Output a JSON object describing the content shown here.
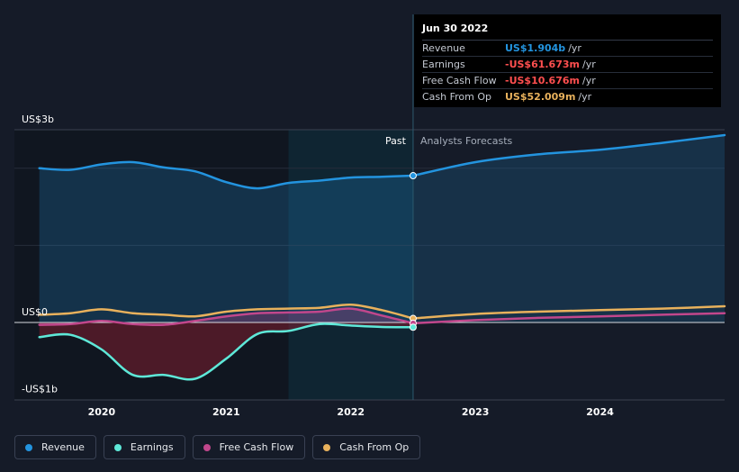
{
  "chart_data": {
    "type": "line",
    "unit": "USD",
    "y_axis": {
      "ylim": [
        -1.0,
        2.5
      ],
      "labels": [
        {
          "value": 2.5,
          "text": "US$3b"
        },
        {
          "value": 0,
          "text": "US$0"
        },
        {
          "value": -1.0,
          "text": "-US$1b"
        }
      ]
    },
    "x_axis": {
      "xlim": [
        2019.3,
        2025.0
      ],
      "ticks": [
        {
          "value": 2020.0,
          "text": "2020"
        },
        {
          "value": 2021.0,
          "text": "2021"
        },
        {
          "value": 2022.0,
          "text": "2022"
        },
        {
          "value": 2023.0,
          "text": "2023"
        },
        {
          "value": 2024.0,
          "text": "2024"
        }
      ]
    },
    "regions": {
      "past_label": "Past",
      "forecast_label": "Analysts Forecasts",
      "highlight_start": 2021.5,
      "divider": 2022.5
    },
    "series": [
      {
        "name": "Revenue",
        "color": "#2394df",
        "fill": true,
        "past": [
          [
            2019.5,
            2.0
          ],
          [
            2019.75,
            1.98
          ],
          [
            2020.0,
            2.05
          ],
          [
            2020.25,
            2.08
          ],
          [
            2020.5,
            2.01
          ],
          [
            2020.75,
            1.96
          ],
          [
            2021.0,
            1.82
          ],
          [
            2021.25,
            1.74
          ],
          [
            2021.5,
            1.81
          ],
          [
            2021.75,
            1.84
          ],
          [
            2022.0,
            1.88
          ],
          [
            2022.25,
            1.89
          ],
          [
            2022.5,
            1.904
          ]
        ],
        "forecast": [
          [
            2022.5,
            1.904
          ],
          [
            2023.0,
            2.08
          ],
          [
            2023.5,
            2.18
          ],
          [
            2024.0,
            2.24
          ],
          [
            2024.5,
            2.33
          ],
          [
            2025.0,
            2.43
          ]
        ]
      },
      {
        "name": "Earnings",
        "color": "#5ee8d8",
        "fill": true,
        "past": [
          [
            2019.5,
            -0.19
          ],
          [
            2019.75,
            -0.16
          ],
          [
            2020.0,
            -0.35
          ],
          [
            2020.25,
            -0.68
          ],
          [
            2020.5,
            -0.68
          ],
          [
            2020.75,
            -0.73
          ],
          [
            2021.0,
            -0.47
          ],
          [
            2021.25,
            -0.15
          ],
          [
            2021.5,
            -0.11
          ],
          [
            2021.75,
            -0.02
          ],
          [
            2022.0,
            -0.04
          ],
          [
            2022.25,
            -0.058
          ],
          [
            2022.5,
            -0.0617
          ]
        ],
        "forecast": []
      },
      {
        "name": "Free Cash Flow",
        "color": "#c1478c",
        "fill": true,
        "past": [
          [
            2019.5,
            -0.03
          ],
          [
            2019.75,
            -0.02
          ],
          [
            2020.0,
            0.02
          ],
          [
            2020.25,
            -0.02
          ],
          [
            2020.5,
            -0.03
          ],
          [
            2020.75,
            0.02
          ],
          [
            2021.0,
            0.08
          ],
          [
            2021.25,
            0.12
          ],
          [
            2021.5,
            0.13
          ],
          [
            2021.75,
            0.14
          ],
          [
            2022.0,
            0.18
          ],
          [
            2022.25,
            0.09
          ],
          [
            2022.5,
            -0.0107
          ]
        ],
        "forecast": [
          [
            2022.5,
            -0.0107
          ],
          [
            2023.0,
            0.03
          ],
          [
            2023.5,
            0.06
          ],
          [
            2024.0,
            0.08
          ],
          [
            2024.5,
            0.1
          ],
          [
            2025.0,
            0.12
          ]
        ]
      },
      {
        "name": "Cash From Op",
        "color": "#e8b15c",
        "fill": false,
        "past": [
          [
            2019.5,
            0.1
          ],
          [
            2019.75,
            0.12
          ],
          [
            2020.0,
            0.17
          ],
          [
            2020.25,
            0.12
          ],
          [
            2020.5,
            0.1
          ],
          [
            2020.75,
            0.08
          ],
          [
            2021.0,
            0.14
          ],
          [
            2021.25,
            0.17
          ],
          [
            2021.5,
            0.18
          ],
          [
            2021.75,
            0.19
          ],
          [
            2022.0,
            0.23
          ],
          [
            2022.25,
            0.16
          ],
          [
            2022.5,
            0.052
          ]
        ],
        "forecast": [
          [
            2022.5,
            0.052
          ],
          [
            2023.0,
            0.11
          ],
          [
            2023.5,
            0.14
          ],
          [
            2024.0,
            0.16
          ],
          [
            2024.5,
            0.18
          ],
          [
            2025.0,
            0.21
          ]
        ]
      }
    ]
  },
  "tooltip": {
    "date": "Jun 30 2022",
    "rows": [
      {
        "name": "Revenue",
        "value": "US$1.904b",
        "unit": "/yr",
        "color": "#2394df"
      },
      {
        "name": "Earnings",
        "value": "-US$61.673m",
        "unit": "/yr",
        "color": "#ff4f4f"
      },
      {
        "name": "Free Cash Flow",
        "value": "-US$10.676m",
        "unit": "/yr",
        "color": "#ff4f4f"
      },
      {
        "name": "Cash From Op",
        "value": "US$52.009m",
        "unit": "/yr",
        "color": "#e8b15c"
      }
    ]
  },
  "legend": [
    {
      "label": "Revenue",
      "color": "#2394df"
    },
    {
      "label": "Earnings",
      "color": "#5ee8d8"
    },
    {
      "label": "Free Cash Flow",
      "color": "#c1478c"
    },
    {
      "label": "Cash From Op",
      "color": "#e8b15c"
    }
  ]
}
